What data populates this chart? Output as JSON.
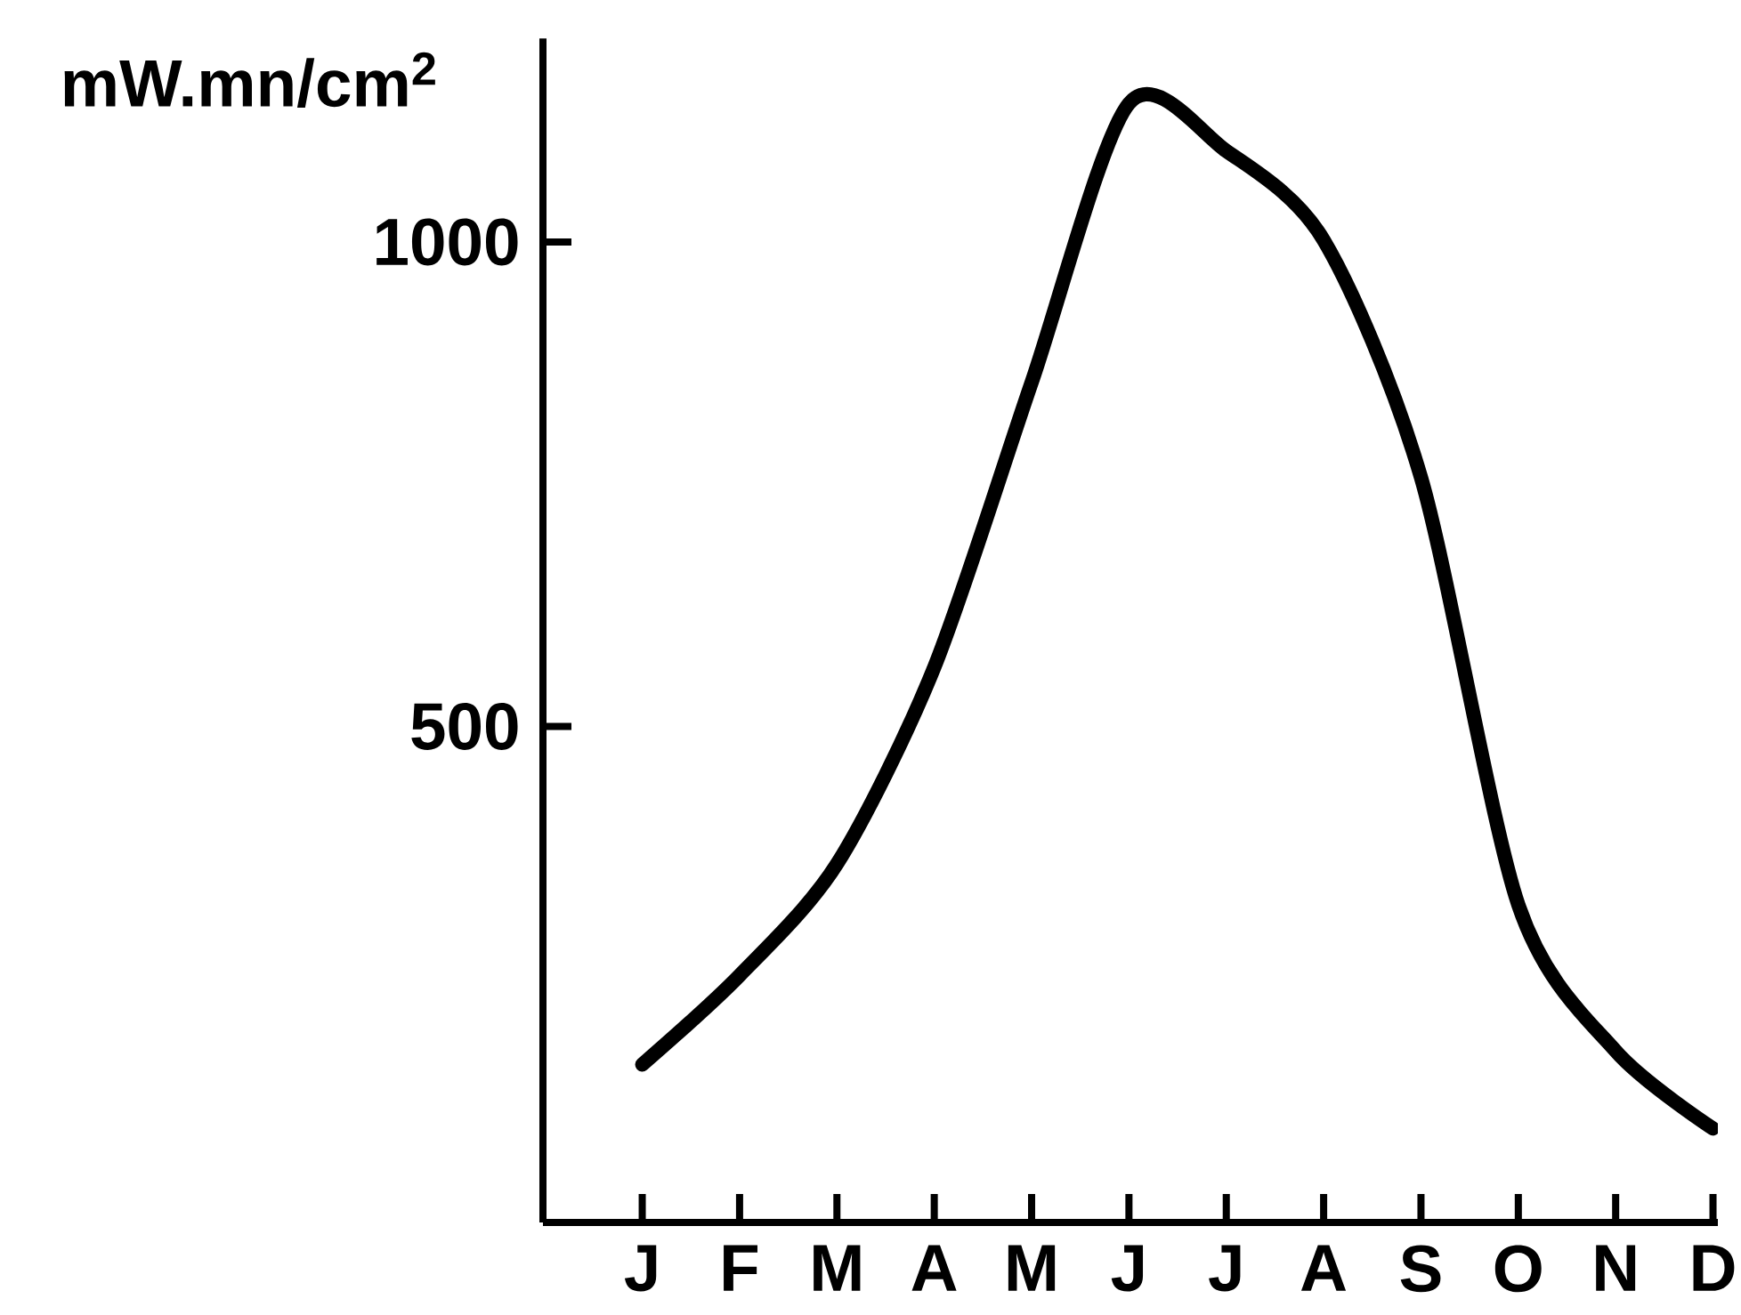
{
  "chart_data": {
    "type": "line",
    "ylabel": "mW.mn/cm$^{2}$",
    "categories": [
      "J",
      "F",
      "M",
      "A",
      "M",
      "J",
      "J",
      "A",
      "S",
      "O",
      "N",
      "D"
    ],
    "series": [
      {
        "color": "#000000",
        "values": [
          151,
          243,
          358,
          561,
          855,
          1143,
          1094,
          1002,
          757,
          316,
          165,
          85
        ]
      }
    ],
    "ylim": [
      -12,
      1210
    ],
    "yticks": [
      500,
      1000
    ],
    "grid": false,
    "legend": false,
    "marker": "none",
    "line_style": "solid"
  }
}
